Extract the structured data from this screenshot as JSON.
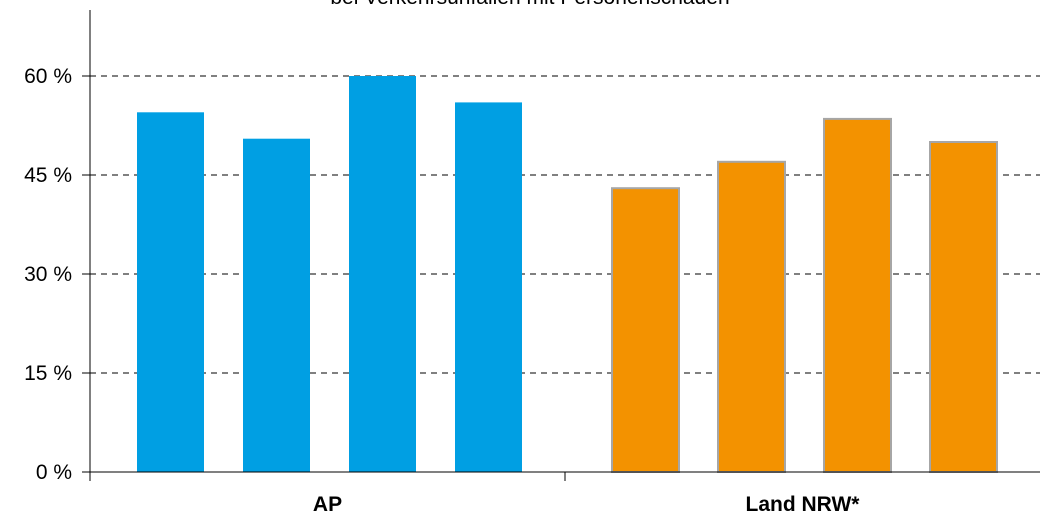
{
  "chart_data": {
    "type": "bar",
    "title": "bei Verkehrsunfällen mit Personenschaden",
    "categories": [
      "AP",
      "Land NRW*"
    ],
    "series_per_group": 4,
    "groups": [
      {
        "label": "AP",
        "values": [
          54.5,
          50.5,
          60.0,
          56.0
        ],
        "color": "#009FE3",
        "stroke": "none"
      },
      {
        "label": "Land NRW*",
        "values": [
          43.0,
          47.0,
          53.5,
          50.0
        ],
        "color": "#F39200",
        "stroke": "#A6A6A6"
      }
    ],
    "yticks": [
      "0 %",
      "15 %",
      "30 %",
      "45 %",
      "60 %"
    ],
    "ytick_values": [
      0,
      15,
      30,
      45,
      60
    ],
    "ylim": [
      0,
      70
    ],
    "grid": true,
    "grid_style": "dashed"
  }
}
